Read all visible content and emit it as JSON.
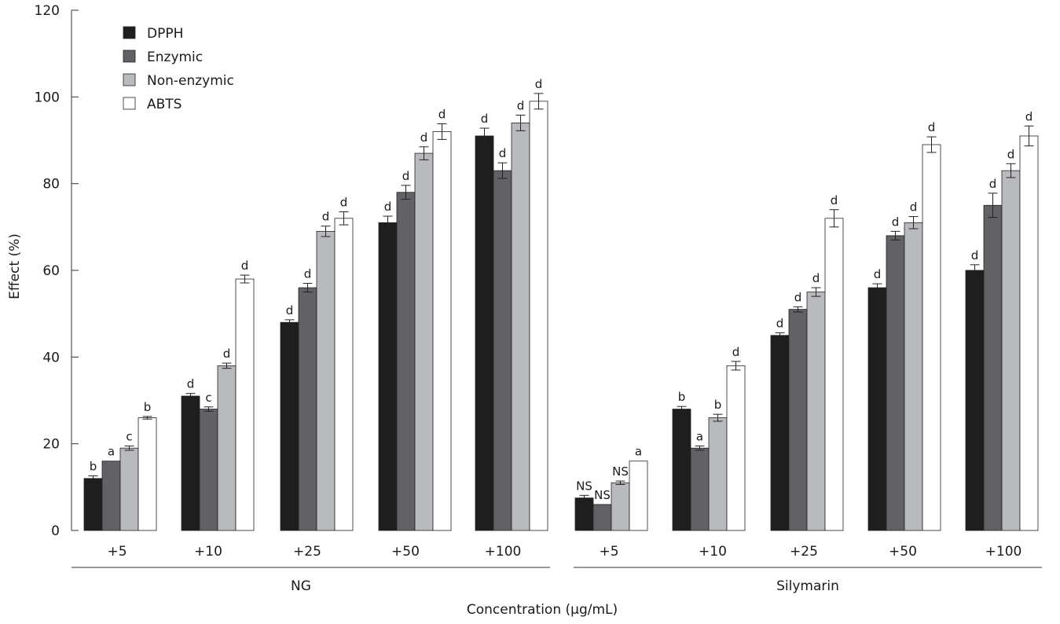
{
  "chart_data": {
    "type": "bar",
    "ylabel": "Effect (%)",
    "xlabel": "Concentration (µg/mL)",
    "ylim": [
      0,
      120
    ],
    "yticks": [
      0,
      20,
      40,
      60,
      80,
      100,
      120
    ],
    "grid": false,
    "legend_position": "top-left",
    "groups": [
      {
        "name": "NG",
        "categories": [
          "+5",
          "+10",
          "+25",
          "+50",
          "+100"
        ]
      },
      {
        "name": "Silymarin",
        "categories": [
          "+5",
          "+10",
          "+25",
          "+50",
          "+100"
        ]
      }
    ],
    "series": [
      {
        "name": "DPPH",
        "color": "#1e1e1e",
        "values": [
          12,
          31,
          48,
          71,
          91,
          7.5,
          28,
          45,
          56,
          60
        ],
        "errors": [
          0.6,
          0.6,
          0.6,
          1.5,
          1.8,
          0.6,
          0.6,
          0.6,
          0.9,
          1.3
        ],
        "labels": [
          "b",
          "d",
          "d",
          "d",
          "d",
          "NS",
          "b",
          "d",
          "d",
          "d"
        ]
      },
      {
        "name": "Enzymic",
        "color": "#616166",
        "values": [
          16,
          28,
          56,
          78,
          83,
          6,
          19,
          51,
          68,
          75
        ],
        "errors": [
          0,
          0.5,
          1.0,
          1.6,
          1.8,
          0,
          0.5,
          0.6,
          1.0,
          2.8
        ],
        "labels": [
          "a",
          "c",
          "d",
          "d",
          "d",
          "NS",
          "a",
          "d",
          "d",
          "d"
        ]
      },
      {
        "name": "Non-enzymic",
        "color": "#b9babd",
        "values": [
          19,
          38,
          69,
          87,
          94,
          11,
          26,
          55,
          71,
          83
        ],
        "errors": [
          0.5,
          0.6,
          1.2,
          1.5,
          1.8,
          0.4,
          0.8,
          1.0,
          1.4,
          1.6
        ],
        "labels": [
          "c",
          "d",
          "d",
          "d",
          "d",
          "NS",
          "b",
          "d",
          "d",
          "d"
        ]
      },
      {
        "name": "ABTS",
        "color": "#ffffff",
        "values": [
          26,
          58,
          72,
          92,
          99,
          16,
          38,
          72,
          89,
          91
        ],
        "errors": [
          0.3,
          0.9,
          1.5,
          1.8,
          1.8,
          0,
          1.0,
          2.0,
          1.8,
          2.3
        ],
        "labels": [
          "b",
          "d",
          "d",
          "d",
          "d",
          "a",
          "d",
          "d",
          "d",
          "d"
        ]
      }
    ]
  }
}
